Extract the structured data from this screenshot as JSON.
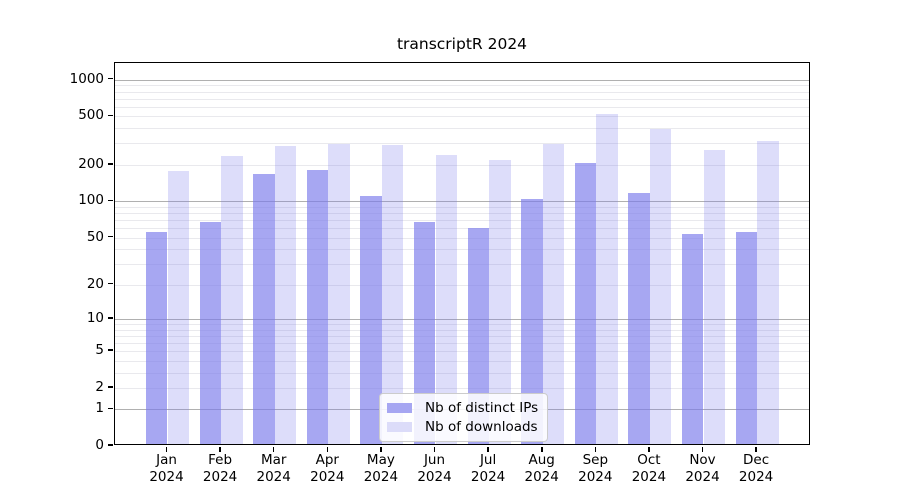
{
  "chart_data": {
    "type": "bar",
    "title": "transcriptR 2024",
    "categories": [
      "Jan 2024",
      "Feb 2024",
      "Mar 2024",
      "Apr 2024",
      "May 2024",
      "Jun 2024",
      "Jul 2024",
      "Aug 2024",
      "Sep 2024",
      "Oct 2024",
      "Nov 2024",
      "Dec 2024"
    ],
    "series": [
      {
        "name": "Nb of distinct IPs",
        "color": "#a6a6f2",
        "values": [
          54,
          65,
          163,
          175,
          107,
          65,
          58,
          100,
          199,
          112,
          52,
          54
        ]
      },
      {
        "name": "Nb of downloads",
        "color": "#dcdcf9",
        "values": [
          170,
          226,
          275,
          287,
          280,
          232,
          211,
          285,
          508,
          383,
          256,
          300
        ]
      }
    ],
    "xlabel": "",
    "ylabel": "",
    "y_ticks": [
      0,
      1,
      2,
      5,
      10,
      20,
      50,
      100,
      200,
      500,
      1000
    ],
    "y_scale": "log1p",
    "y_axis_max": 1370,
    "grid_major": [
      1,
      10,
      100,
      1000
    ],
    "grid_minor": [
      2,
      3,
      4,
      5,
      6,
      7,
      8,
      9,
      20,
      30,
      40,
      50,
      60,
      70,
      80,
      90,
      200,
      300,
      400,
      500,
      600,
      700,
      800,
      900
    ],
    "legend_position": "bottom-center",
    "colors": {
      "bar_fill_base": "#7a7aeb",
      "major_grid": "#b0b0b0",
      "minor_grid": "#e9e9ed",
      "frame": "#000000"
    }
  }
}
